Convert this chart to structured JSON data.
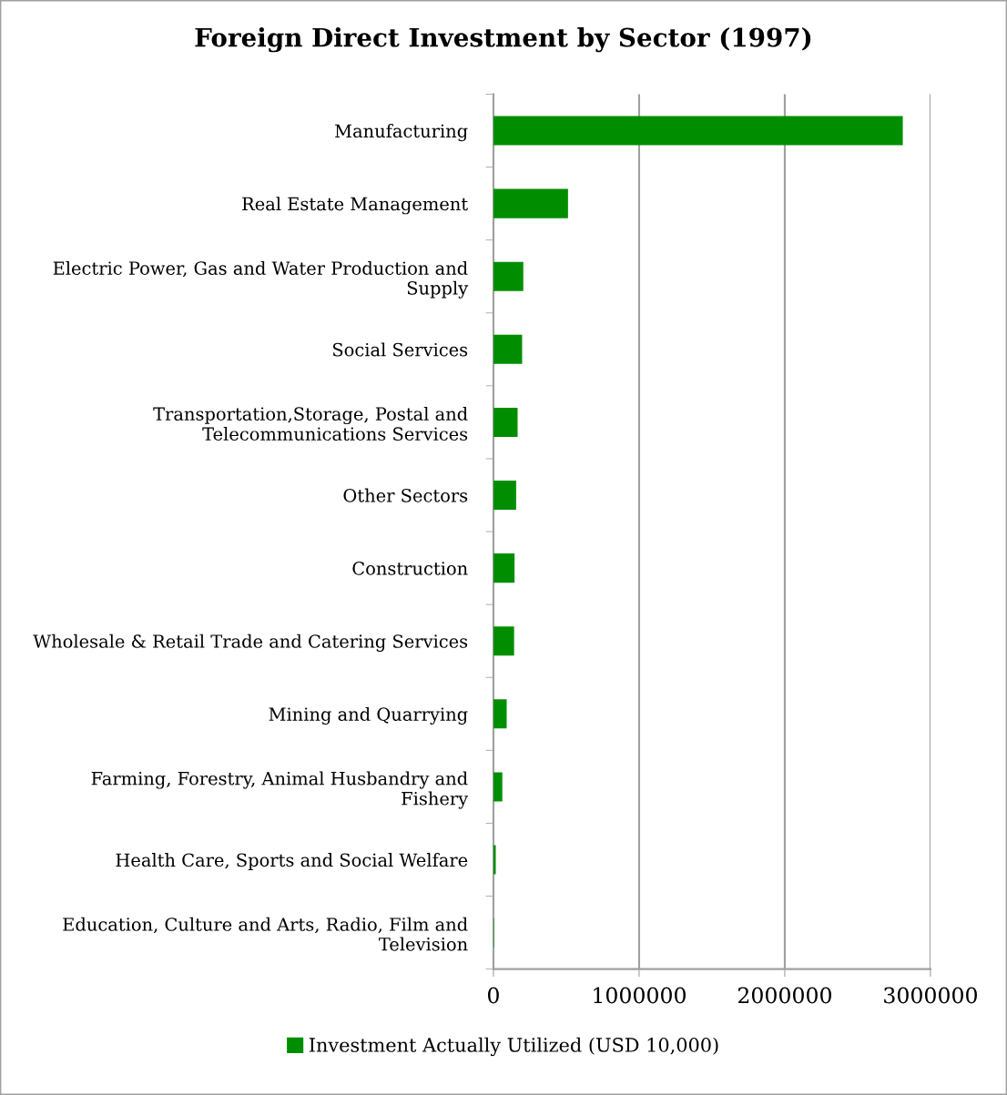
{
  "chart_data": {
    "type": "bar",
    "orientation": "horizontal",
    "title": "Foreign Direct Investment by Sector (1997)",
    "categories": [
      "Manufacturing",
      "Real Estate Management",
      "Electric Power, Gas and Water Production and\nSupply",
      "Social Services",
      "Transportation,Storage, Postal and\nTelecommunications Services",
      "Other Sectors",
      "Construction",
      "Wholesale & Retail Trade and Catering Services",
      "Mining and Quarrying",
      "Farming, Forestry, Animal Husbandry and\nFishery",
      "Health Care, Sports and Social Welfare",
      "Education, Culture and Arts, Radio, Film and\nTelevision"
    ],
    "series": [
      {
        "name": "Investment Actually Utilized (USD 10,000)",
        "color": "#008e00",
        "values": [
          2810000,
          512000,
          205000,
          197000,
          166000,
          156000,
          145000,
          142000,
          91000,
          61000,
          16000,
          4000
        ]
      }
    ],
    "xlim": [
      0,
      3000000
    ],
    "xticks": [
      0,
      1000000,
      2000000,
      3000000
    ],
    "grid": "x",
    "legend": "bottom"
  }
}
